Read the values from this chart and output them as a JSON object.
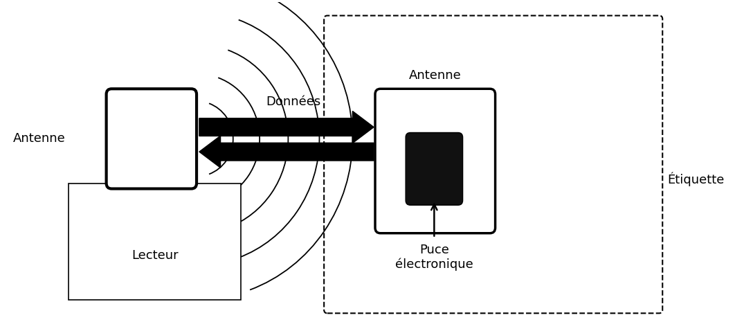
{
  "bg_color": "#ffffff",
  "text_color": "#000000",
  "fig_width": 10.62,
  "fig_height": 4.65,
  "lecteur_label": "Lecteur",
  "antenne_reader_label": "Antenne",
  "antenne_tag_label": "Antenne",
  "puce_label": "Puce\nélectronique",
  "etiquette_label": "Étiquette",
  "donnees_label": "Données"
}
